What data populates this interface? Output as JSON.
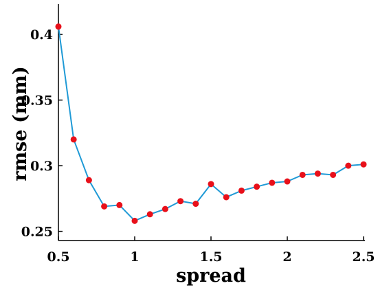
{
  "chart_data": {
    "type": "line",
    "xlabel": "spread",
    "ylabel": "rmse (mm)",
    "xlim": [
      0.5,
      2.5
    ],
    "ylim": [
      0.243,
      0.421
    ],
    "xticks": [
      0.5,
      1,
      1.5,
      2,
      2.5
    ],
    "xtick_labels": [
      "0.5",
      "1",
      "1.5",
      "2",
      "2.5"
    ],
    "yticks": [
      0.25,
      0.3,
      0.35,
      0.4
    ],
    "ytick_labels": [
      "0.25",
      "0.3",
      "0.35",
      "0.4"
    ],
    "grid": false,
    "line_color": "#1f9ad6",
    "marker_color": "#e8101a",
    "series": [
      {
        "x": [
          0.5,
          0.6,
          0.7,
          0.8,
          0.9,
          1.0,
          1.1,
          1.2,
          1.3,
          1.4,
          1.5,
          1.6,
          1.7,
          1.8,
          1.9,
          2.0,
          2.1,
          2.2,
          2.3,
          2.4,
          2.5
        ],
        "y": [
          0.406,
          0.32,
          0.289,
          0.269,
          0.27,
          0.258,
          0.263,
          0.267,
          0.273,
          0.271,
          0.286,
          0.276,
          0.281,
          0.284,
          0.287,
          0.288,
          0.293,
          0.294,
          0.293,
          0.3,
          0.301
        ]
      }
    ]
  }
}
